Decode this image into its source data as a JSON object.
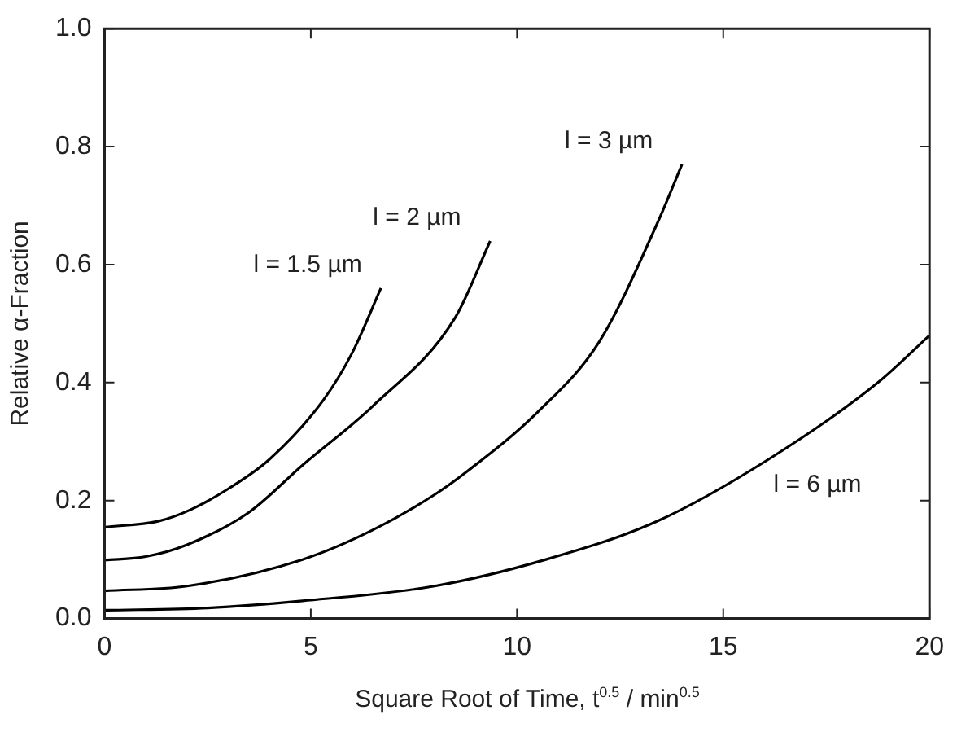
{
  "chart_data": {
    "type": "line",
    "xlabel": "Square Root of Time, t$^{0.5}$ / min$^{0.5}$",
    "ylabel": "Relative α-Fraction",
    "xlim": [
      0,
      20
    ],
    "xticks": [
      0,
      5,
      10,
      15,
      20
    ],
    "ylim": [
      0,
      1
    ],
    "yticks": [
      {
        "value": 0,
        "label": "0.0"
      },
      {
        "value": 0.2,
        "label": "0.2"
      },
      {
        "value": 0.4,
        "label": "0.4"
      },
      {
        "value": 0.6,
        "label": "0.6"
      },
      {
        "value": 0.8,
        "label": "0.8"
      },
      {
        "value": 1,
        "label": "1.0"
      }
    ],
    "grid": false,
    "legend": false,
    "marker": "none",
    "line_style": "solid",
    "series": [
      {
        "name": "l = 1.5 µm",
        "color": "#000000",
        "x": [
          0,
          1.3,
          2.1,
          3.0,
          4.0,
          5.3,
          6.0,
          6.7
        ],
        "values": [
          0.155,
          0.165,
          0.185,
          0.22,
          0.27,
          0.37,
          0.45,
          0.56
        ]
      },
      {
        "name": "l = 2 µm",
        "color": "#000000",
        "x": [
          0,
          1.0,
          2.0,
          3.5,
          4.8,
          6.5,
          8.5,
          9.35
        ],
        "values": [
          0.099,
          0.105,
          0.125,
          0.18,
          0.26,
          0.36,
          0.51,
          0.64
        ]
      },
      {
        "name": "l = 3 µm",
        "color": "#000000",
        "x": [
          0,
          2.0,
          4.8,
          6.5,
          8.0,
          8.8,
          10.5,
          12.0,
          13.4,
          14.0
        ],
        "values": [
          0.047,
          0.055,
          0.1,
          0.15,
          0.21,
          0.25,
          0.35,
          0.47,
          0.67,
          0.77
        ]
      },
      {
        "name": "l = 6 µm",
        "color": "#000000",
        "x": [
          0,
          2.5,
          4.8,
          8.0,
          10.7,
          13.4,
          16.1,
          18.75,
          20
        ],
        "values": [
          0.014,
          0.018,
          0.03,
          0.055,
          0.1,
          0.165,
          0.27,
          0.4,
          0.48
        ]
      }
    ]
  }
}
